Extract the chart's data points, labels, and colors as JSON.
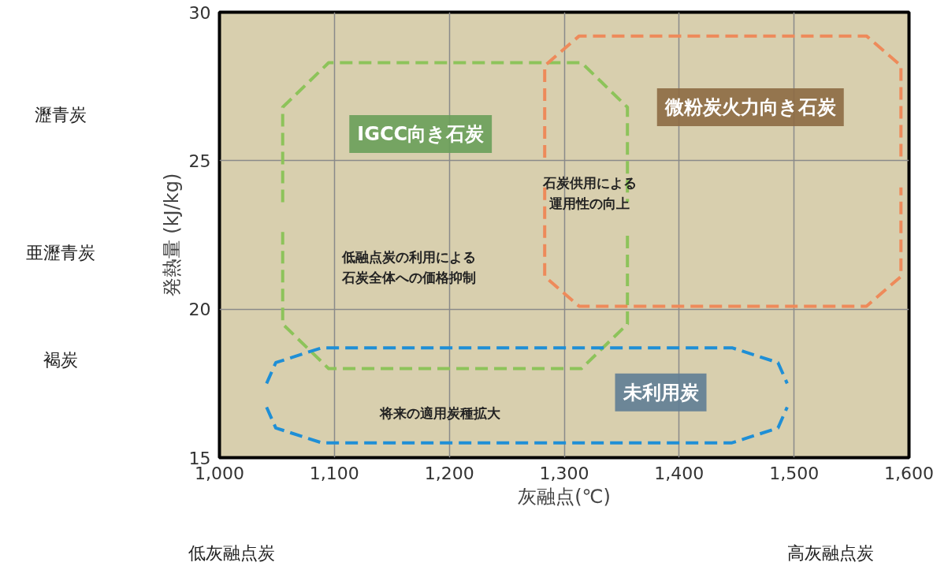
{
  "chart_data": {
    "type": "line",
    "xlabel": "灰融点(℃)",
    "ylabel": "発熱量 (kJ/kg)",
    "xlim": [
      1000,
      1600
    ],
    "xticks": [
      {
        "value": 1000,
        "label": "1,000"
      },
      {
        "value": 1100,
        "label": "1,100"
      },
      {
        "value": 1200,
        "label": "1,200"
      },
      {
        "value": 1300,
        "label": "1,300"
      },
      {
        "value": 1400,
        "label": "1,400"
      },
      {
        "value": 1500,
        "label": "1,500"
      },
      {
        "value": 1600,
        "label": "1,600"
      }
    ],
    "ylim": [
      15,
      30
    ],
    "yticks": [
      15,
      20,
      25,
      30
    ],
    "grid": true,
    "line_style": "dashed",
    "series": [
      {
        "color": "#8dc35a",
        "x": [
          1055,
          1055,
          1095,
          1315,
          1355,
          1355
        ],
        "values": [
          23.6,
          26.8,
          28.3,
          28.3,
          26.8,
          23.6
        ]
      },
      {
        "color": "#8dc35a",
        "x": [
          1055,
          1055,
          1095,
          1315,
          1355,
          1355
        ],
        "values": [
          22.6,
          19.5,
          18.0,
          18.0,
          19.5,
          22.6
        ]
      },
      {
        "color": "#ee8a5a",
        "x": [
          1283,
          1283,
          1313,
          1563,
          1593,
          1593
        ],
        "values": [
          25.1,
          28.2,
          29.2,
          29.2,
          28.2,
          25.1
        ]
      },
      {
        "color": "#ee8a5a",
        "x": [
          1283,
          1283,
          1313,
          1563,
          1593,
          1593
        ],
        "values": [
          24.1,
          21.1,
          20.1,
          20.1,
          21.1,
          24.1
        ]
      },
      {
        "color": "#1f8fd6",
        "x": [
          1041,
          1049,
          1089,
          1446,
          1486,
          1494
        ],
        "values": [
          17.5,
          18.2,
          18.7,
          18.7,
          18.2,
          17.5
        ]
      },
      {
        "color": "#1f8fd6",
        "x": [
          1041,
          1049,
          1089,
          1446,
          1486,
          1494
        ],
        "values": [
          16.7,
          16.0,
          15.5,
          15.5,
          16.0,
          16.7
        ]
      }
    ],
    "annotations": [
      "IGCC向き石炭",
      "微粉炭火力向き石炭",
      "石炭供用による運用性の向上",
      "低融点炭の利用による石炭全体への価格抑制",
      "未利用炭",
      "将来の適用炭種拡大",
      "瀝青炭",
      "亜瀝青炭",
      "褐炭",
      "低灰融点炭",
      "高灰融点炭"
    ]
  }
}
